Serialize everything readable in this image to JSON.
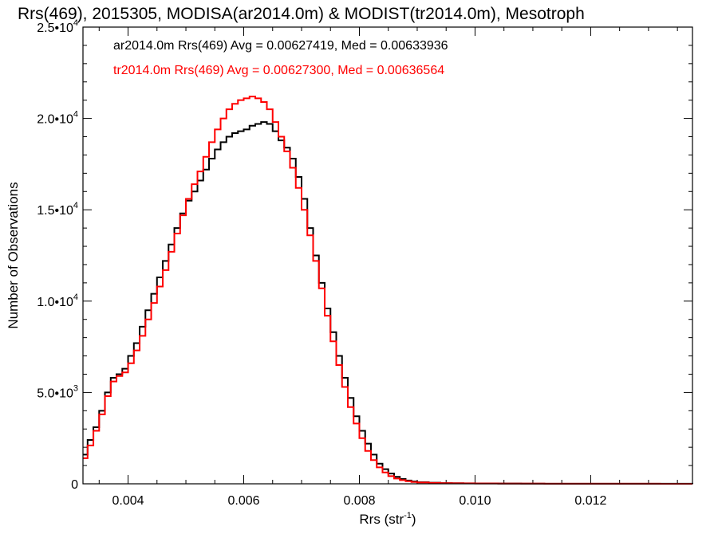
{
  "chart_data": {
    "type": "line",
    "title": "Rrs(469), 2015305, MODISA(ar2014.0m) & MODIST(tr2014.0m), Mesotroph",
    "xlabel": "Rrs (str",
    "xlabel_sup": "-1",
    "xlabel_close": ")",
    "ylabel": "Number of Observations",
    "xlim": [
      0.00322,
      0.01376
    ],
    "ylim": [
      0,
      25000
    ],
    "x_ticks": [
      0.004,
      0.006,
      0.008,
      0.01,
      0.012
    ],
    "x_tick_labels": [
      "0.004",
      "0.006",
      "0.008",
      "0.010",
      "0.012"
    ],
    "y_ticks": [
      0,
      5000,
      10000,
      15000,
      20000,
      25000
    ],
    "y_tick_labels": [
      {
        "base": "0",
        "exp": ""
      },
      {
        "base": "5.0•10",
        "exp": "3"
      },
      {
        "base": "1.0•10",
        "exp": "4"
      },
      {
        "base": "1.5•10",
        "exp": "4"
      },
      {
        "base": "2.0•10",
        "exp": "4"
      },
      {
        "base": "2.5•10",
        "exp": "4"
      }
    ],
    "series": [
      {
        "name": "ar2014.0m",
        "color": "#000000",
        "legend": "ar2014.0m Rrs(469) Avg = 0.00627419, Med = 0.00633936",
        "points": [
          [
            0.00322,
            1600
          ],
          [
            0.0033,
            2400
          ],
          [
            0.0034,
            3100
          ],
          [
            0.0035,
            4000
          ],
          [
            0.0036,
            5000
          ],
          [
            0.0037,
            5800
          ],
          [
            0.0038,
            6000
          ],
          [
            0.0039,
            6300
          ],
          [
            0.004,
            7000
          ],
          [
            0.0041,
            7700
          ],
          [
            0.0042,
            8600
          ],
          [
            0.0043,
            9500
          ],
          [
            0.0044,
            10400
          ],
          [
            0.0045,
            11300
          ],
          [
            0.0046,
            12200
          ],
          [
            0.0047,
            13100
          ],
          [
            0.0048,
            14000
          ],
          [
            0.0049,
            14800
          ],
          [
            0.005,
            15500
          ],
          [
            0.0051,
            16000
          ],
          [
            0.0052,
            16600
          ],
          [
            0.0053,
            17200
          ],
          [
            0.0054,
            17800
          ],
          [
            0.0055,
            18300
          ],
          [
            0.0056,
            18700
          ],
          [
            0.0057,
            19000
          ],
          [
            0.0058,
            19200
          ],
          [
            0.0059,
            19300
          ],
          [
            0.006,
            19400
          ],
          [
            0.0061,
            19600
          ],
          [
            0.0062,
            19700
          ],
          [
            0.0063,
            19800
          ],
          [
            0.0064,
            19700
          ],
          [
            0.0065,
            19300
          ],
          [
            0.0066,
            18800
          ],
          [
            0.0067,
            18400
          ],
          [
            0.0068,
            17800
          ],
          [
            0.0069,
            16800
          ],
          [
            0.007,
            15600
          ],
          [
            0.0071,
            14000
          ],
          [
            0.0072,
            12500
          ],
          [
            0.0073,
            11000
          ],
          [
            0.0074,
            9600
          ],
          [
            0.0075,
            8300
          ],
          [
            0.0076,
            7000
          ],
          [
            0.0077,
            5800
          ],
          [
            0.0078,
            4700
          ],
          [
            0.0079,
            3700
          ],
          [
            0.008,
            2900
          ],
          [
            0.0081,
            2200
          ],
          [
            0.0082,
            1600
          ],
          [
            0.0083,
            1100
          ],
          [
            0.0084,
            800
          ],
          [
            0.0085,
            560
          ],
          [
            0.0086,
            380
          ],
          [
            0.0087,
            260
          ],
          [
            0.0088,
            180
          ],
          [
            0.0089,
            130
          ],
          [
            0.009,
            90
          ],
          [
            0.0092,
            60
          ],
          [
            0.0094,
            40
          ],
          [
            0.0096,
            30
          ],
          [
            0.0098,
            25
          ],
          [
            0.01,
            20
          ],
          [
            0.0104,
            15
          ],
          [
            0.0108,
            10
          ],
          [
            0.0112,
            8
          ],
          [
            0.0116,
            6
          ],
          [
            0.012,
            5
          ],
          [
            0.0126,
            4
          ],
          [
            0.0132,
            3
          ],
          [
            0.01376,
            2
          ]
        ]
      },
      {
        "name": "tr2014.0m",
        "color": "#ff0000",
        "legend": "tr2014.0m Rrs(469) Avg = 0.00627300, Med = 0.00636564",
        "points": [
          [
            0.00322,
            1400
          ],
          [
            0.0033,
            2100
          ],
          [
            0.0034,
            2900
          ],
          [
            0.0035,
            3800
          ],
          [
            0.0036,
            4800
          ],
          [
            0.0037,
            5600
          ],
          [
            0.0038,
            5900
          ],
          [
            0.0039,
            6100
          ],
          [
            0.004,
            6600
          ],
          [
            0.0041,
            7300
          ],
          [
            0.0042,
            8100
          ],
          [
            0.0043,
            9000
          ],
          [
            0.0044,
            9900
          ],
          [
            0.0045,
            10800
          ],
          [
            0.0046,
            11700
          ],
          [
            0.0047,
            12700
          ],
          [
            0.0048,
            13700
          ],
          [
            0.0049,
            14700
          ],
          [
            0.005,
            15600
          ],
          [
            0.0051,
            16400
          ],
          [
            0.0052,
            17100
          ],
          [
            0.0053,
            17900
          ],
          [
            0.0054,
            18700
          ],
          [
            0.0055,
            19400
          ],
          [
            0.0056,
            20000
          ],
          [
            0.0057,
            20500
          ],
          [
            0.0058,
            20800
          ],
          [
            0.0059,
            21000
          ],
          [
            0.006,
            21100
          ],
          [
            0.0061,
            21200
          ],
          [
            0.0062,
            21100
          ],
          [
            0.0063,
            20900
          ],
          [
            0.0064,
            20500
          ],
          [
            0.0065,
            19800
          ],
          [
            0.0066,
            19000
          ],
          [
            0.0067,
            18200
          ],
          [
            0.0068,
            17300
          ],
          [
            0.0069,
            16200
          ],
          [
            0.007,
            15000
          ],
          [
            0.0071,
            13600
          ],
          [
            0.0072,
            12200
          ],
          [
            0.0073,
            10700
          ],
          [
            0.0074,
            9200
          ],
          [
            0.0075,
            7800
          ],
          [
            0.0076,
            6500
          ],
          [
            0.0077,
            5300
          ],
          [
            0.0078,
            4200
          ],
          [
            0.0079,
            3300
          ],
          [
            0.008,
            2500
          ],
          [
            0.0081,
            1800
          ],
          [
            0.0082,
            1300
          ],
          [
            0.0083,
            900
          ],
          [
            0.0084,
            620
          ],
          [
            0.0085,
            420
          ],
          [
            0.0086,
            290
          ],
          [
            0.0087,
            200
          ],
          [
            0.0088,
            140
          ],
          [
            0.0089,
            100
          ],
          [
            0.009,
            70
          ],
          [
            0.0092,
            50
          ],
          [
            0.0094,
            35
          ],
          [
            0.0096,
            25
          ],
          [
            0.0098,
            20
          ],
          [
            0.01,
            16
          ],
          [
            0.0104,
            12
          ],
          [
            0.0108,
            9
          ],
          [
            0.0112,
            7
          ],
          [
            0.0116,
            5
          ],
          [
            0.012,
            4
          ],
          [
            0.0126,
            3
          ],
          [
            0.0132,
            2
          ],
          [
            0.01376,
            2
          ]
        ]
      }
    ]
  }
}
